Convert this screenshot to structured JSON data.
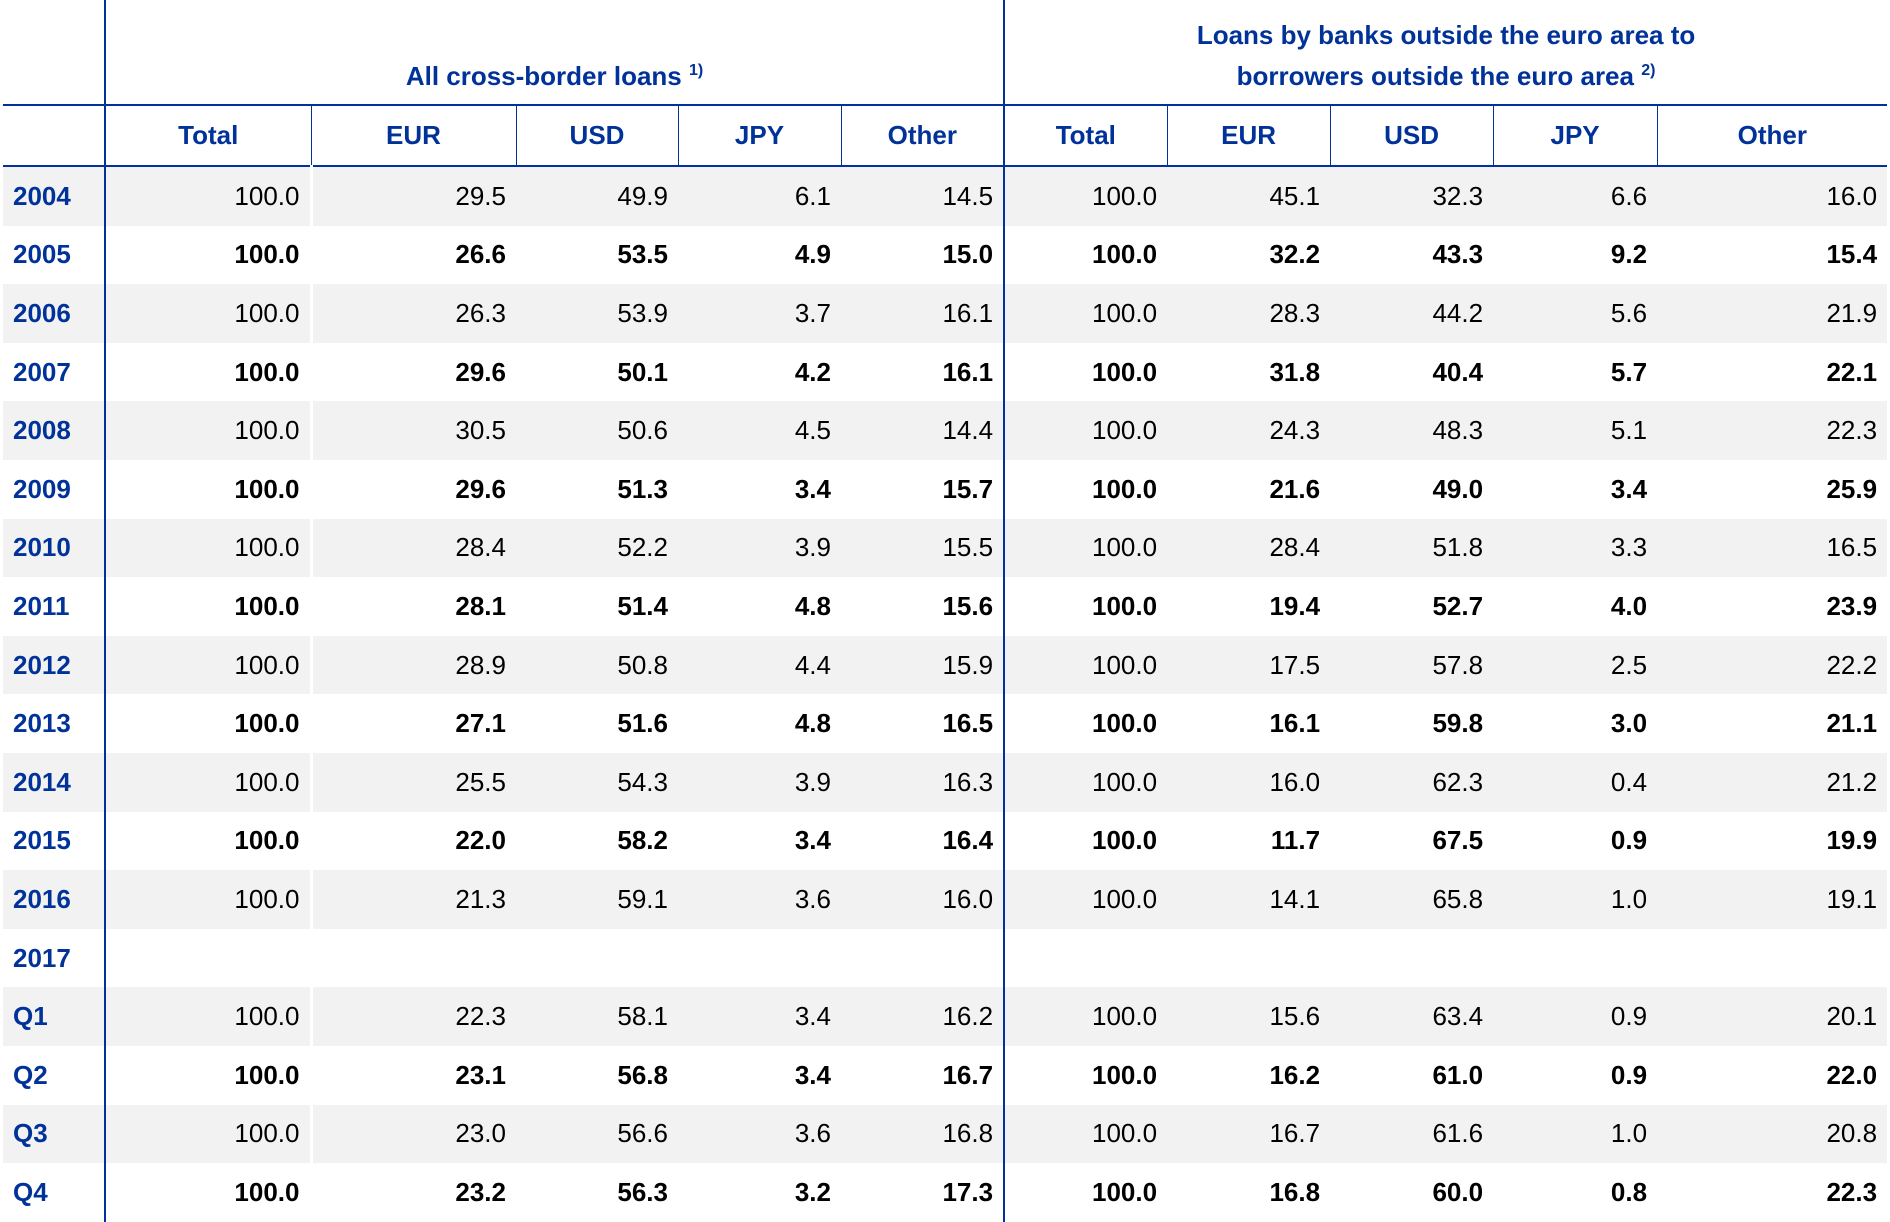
{
  "headers": {
    "group1": "All cross-border loans",
    "group1_note": "1)",
    "group2_line1": "Loans by banks outside the euro area to",
    "group2_line2": "borrowers outside the euro area",
    "group2_note": "2)",
    "columns": [
      "Total",
      "EUR",
      "USD",
      "JPY",
      "Other",
      "Total",
      "EUR",
      "USD",
      "JPY",
      "Other"
    ]
  },
  "rows": [
    {
      "label": "2004",
      "values": [
        "100.0",
        "29.5",
        "49.9",
        "6.1",
        "14.5",
        "100.0",
        "45.1",
        "32.3",
        "6.6",
        "16.0"
      ]
    },
    {
      "label": "2005",
      "values": [
        "100.0",
        "26.6",
        "53.5",
        "4.9",
        "15.0",
        "100.0",
        "32.2",
        "43.3",
        "9.2",
        "15.4"
      ]
    },
    {
      "label": "2006",
      "values": [
        "100.0",
        "26.3",
        "53.9",
        "3.7",
        "16.1",
        "100.0",
        "28.3",
        "44.2",
        "5.6",
        "21.9"
      ]
    },
    {
      "label": "2007",
      "values": [
        "100.0",
        "29.6",
        "50.1",
        "4.2",
        "16.1",
        "100.0",
        "31.8",
        "40.4",
        "5.7",
        "22.1"
      ]
    },
    {
      "label": "2008",
      "values": [
        "100.0",
        "30.5",
        "50.6",
        "4.5",
        "14.4",
        "100.0",
        "24.3",
        "48.3",
        "5.1",
        "22.3"
      ]
    },
    {
      "label": "2009",
      "values": [
        "100.0",
        "29.6",
        "51.3",
        "3.4",
        "15.7",
        "100.0",
        "21.6",
        "49.0",
        "3.4",
        "25.9"
      ]
    },
    {
      "label": "2010",
      "values": [
        "100.0",
        "28.4",
        "52.2",
        "3.9",
        "15.5",
        "100.0",
        "28.4",
        "51.8",
        "3.3",
        "16.5"
      ]
    },
    {
      "label": "2011",
      "values": [
        "100.0",
        "28.1",
        "51.4",
        "4.8",
        "15.6",
        "100.0",
        "19.4",
        "52.7",
        "4.0",
        "23.9"
      ]
    },
    {
      "label": "2012",
      "values": [
        "100.0",
        "28.9",
        "50.8",
        "4.4",
        "15.9",
        "100.0",
        "17.5",
        "57.8",
        "2.5",
        "22.2"
      ]
    },
    {
      "label": "2013",
      "values": [
        "100.0",
        "27.1",
        "51.6",
        "4.8",
        "16.5",
        "100.0",
        "16.1",
        "59.8",
        "3.0",
        "21.1"
      ]
    },
    {
      "label": "2014",
      "values": [
        "100.0",
        "25.5",
        "54.3",
        "3.9",
        "16.3",
        "100.0",
        "16.0",
        "62.3",
        "0.4",
        "21.2"
      ]
    },
    {
      "label": "2015",
      "values": [
        "100.0",
        "22.0",
        "58.2",
        "3.4",
        "16.4",
        "100.0",
        "11.7",
        "67.5",
        "0.9",
        "19.9"
      ]
    },
    {
      "label": "2016",
      "values": [
        "100.0",
        "21.3",
        "59.1",
        "3.6",
        "16.0",
        "100.0",
        "14.1",
        "65.8",
        "1.0",
        "19.1"
      ]
    },
    {
      "label": "2017",
      "values": [
        "",
        "",
        "",
        "",
        "",
        "",
        "",
        "",
        "",
        ""
      ]
    },
    {
      "label": "Q1",
      "values": [
        "100.0",
        "22.3",
        "58.1",
        "3.4",
        "16.2",
        "100.0",
        "15.6",
        "63.4",
        "0.9",
        "20.1"
      ]
    },
    {
      "label": "Q2",
      "values": [
        "100.0",
        "23.1",
        "56.8",
        "3.4",
        "16.7",
        "100.0",
        "16.2",
        "61.0",
        "0.9",
        "22.0"
      ]
    },
    {
      "label": "Q3",
      "values": [
        "100.0",
        "23.0",
        "56.6",
        "3.6",
        "16.8",
        "100.0",
        "16.7",
        "61.6",
        "1.0",
        "20.8"
      ]
    },
    {
      "label": "Q4",
      "values": [
        "100.0",
        "23.2",
        "56.3",
        "3.2",
        "17.3",
        "100.0",
        "16.8",
        "60.0",
        "0.8",
        "22.3"
      ]
    }
  ],
  "styles": {
    "grey": [
      0,
      2,
      4,
      6,
      8,
      10,
      12,
      14,
      16
    ],
    "bold": [
      1,
      3,
      5,
      7,
      9,
      11,
      15,
      17
    ]
  },
  "colors": {
    "accent": "#003299",
    "stripe": "#f2f2f2"
  }
}
